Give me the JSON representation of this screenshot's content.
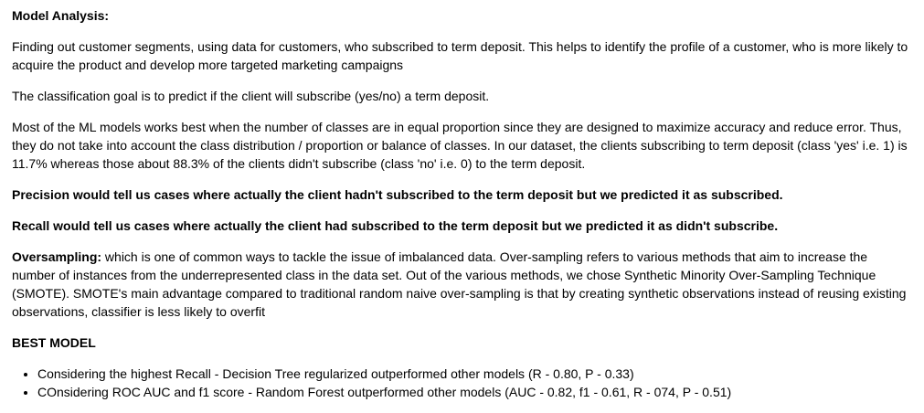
{
  "heading": "Model Analysis:",
  "p1": "Finding out customer segments, using data for customers, who subscribed to term deposit. This helps to identify the profile of a customer, who is more likely to acquire the product and develop more targeted marketing campaigns",
  "p2": "The classification goal is to predict if the client will subscribe (yes/no) a term deposit.",
  "p3": "Most of the ML models works best when the number of classes are in equal proportion since they are designed to maximize accuracy and reduce error. Thus, they do not take into account the class distribution / proportion or balance of classes. In our dataset, the clients subscribing to term deposit (class 'yes' i.e. 1) is 11.7% whereas those about 88.3% of the clients didn't subscribe (class 'no' i.e. 0) to the term deposit.",
  "precision": "Precision would tell us cases where actually the client hadn't subscribed to the term deposit but we predicted it as subscribed.",
  "recall": "Recall would tell us cases where actually the client had subscribed to the term deposit but we predicted it as didn't subscribe.",
  "oversampling": {
    "label": "Oversampling:",
    "text": " which is one of common ways to tackle the issue of imbalanced data. Over-sampling refers to various methods that aim to increase the number of instances from the underrepresented class in the data set. Out of the various methods, we chose Synthetic Minority Over-Sampling Technique (SMOTE). SMOTE's main advantage compared to traditional random naive over-sampling is that by creating synthetic observations instead of reusing existing observations, classifier is less likely to overfit"
  },
  "best_model": {
    "title": "BEST MODEL",
    "items": [
      "Considering the highest Recall - Decision Tree regularized outperformed other models (R - 0.80, P - 0.33)",
      "COnsidering ROC AUC and f1 score - Random Forest outperformed other models (AUC - 0.82, f1 - 0.61, R - 074, P - 0.51)"
    ]
  }
}
